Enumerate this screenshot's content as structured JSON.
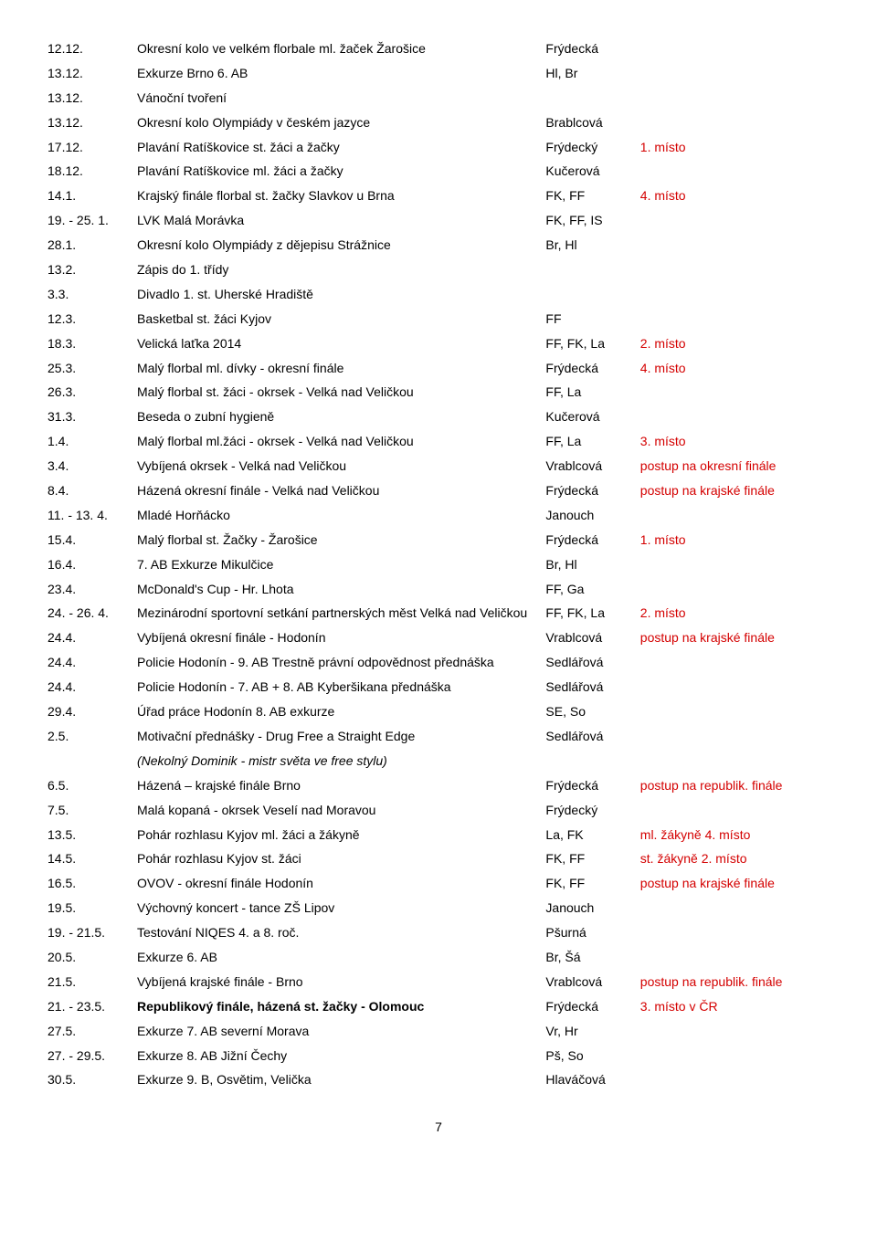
{
  "rows": [
    {
      "date": "12.12.",
      "event": "Okresní kolo ve velkém florbale ml. žaček Žarošice",
      "who": "Frýdecká",
      "note": ""
    },
    {
      "date": "13.12.",
      "event": "Exkurze Brno 6. AB",
      "who": "Hl, Br",
      "note": ""
    },
    {
      "date": "13.12.",
      "event": "Vánoční tvoření",
      "who": "",
      "note": ""
    },
    {
      "date": "13.12.",
      "event": "Okresní kolo Olympiády v českém jazyce",
      "who": "Brablcová",
      "note": ""
    },
    {
      "date": "17.12.",
      "event": "Plavání Ratíškovice st. žáci a žačky",
      "who": "Frýdecký",
      "note": "1. místo",
      "red": true
    },
    {
      "date": "18.12.",
      "event": "Plavání Ratíškovice ml. žáci a žačky",
      "who": "Kučerová",
      "note": ""
    },
    {
      "date": "14.1.",
      "event": "Krajský finále florbal st. žačky Slavkov u Brna",
      "who": "FK, FF",
      "note": "4. místo",
      "red": true
    },
    {
      "date": "19. - 25. 1.",
      "event": "LVK Malá Morávka",
      "who": "FK, FF, IS",
      "note": ""
    },
    {
      "date": "28.1.",
      "event": "Okresní kolo Olympiády z dějepisu Strážnice",
      "who": "Br, Hl",
      "note": ""
    },
    {
      "date": "13.2.",
      "event": "Zápis do 1. třídy",
      "who": "",
      "note": ""
    },
    {
      "date": "3.3.",
      "event": "Divadlo 1. st. Uherské Hradiště",
      "who": "",
      "note": ""
    },
    {
      "date": "12.3.",
      "event": "Basketbal st. žáci Kyjov",
      "who": "FF",
      "note": ""
    },
    {
      "date": "18.3.",
      "event": "Velická laťka 2014",
      "who": "FF, FK, La",
      "note": "2. místo",
      "red": true
    },
    {
      "date": "25.3.",
      "event": "Malý florbal ml. dívky - okresní finále",
      "who": "Frýdecká",
      "note": "4. místo",
      "red": true
    },
    {
      "date": "26.3.",
      "event": "Malý florbal st. žáci - okrsek - Velká nad Veličkou",
      "who": "FF, La",
      "note": ""
    },
    {
      "date": "31.3.",
      "event": "Beseda o zubní hygieně",
      "who": "Kučerová",
      "note": ""
    },
    {
      "date": "1.4.",
      "event": "Malý florbal ml.žáci - okrsek - Velká nad Veličkou",
      "who": "FF, La",
      "note": "3. místo",
      "red": true
    },
    {
      "date": "3.4.",
      "event": "Vybíjená okrsek - Velká nad Veličkou",
      "who": "Vrablcová",
      "note": "postup na okresní finále",
      "red": true
    },
    {
      "date": "8.4.",
      "event": "Házená okresní finále - Velká nad Veličkou",
      "who": "Frýdecká",
      "note": "postup na krajské finále",
      "red": true
    },
    {
      "date": "11. - 13. 4.",
      "event": "Mladé Horňácko",
      "who": "Janouch",
      "note": ""
    },
    {
      "date": "15.4.",
      "event": "Malý florbal st. Žačky - Žarošice",
      "who": "Frýdecká",
      "note": "1. místo",
      "red": true
    },
    {
      "date": "16.4.",
      "event": "7. AB Exkurze Mikulčice",
      "who": "Br, Hl",
      "note": ""
    },
    {
      "date": "23.4.",
      "event": "McDonald's Cup -  Hr. Lhota",
      "who": "FF, Ga",
      "note": ""
    },
    {
      "date": "24. - 26. 4.",
      "event": "Mezinárodní sportovní setkání partnerských měst Velká nad Veličkou",
      "who": "FF, FK, La",
      "note": "2. místo",
      "red": true
    },
    {
      "date": "24.4.",
      "event": "Vybíjená okresní finále - Hodonín",
      "who": "Vrablcová",
      "note": "postup na krajské finále",
      "red": true
    },
    {
      "date": "24.4.",
      "event": "Policie Hodonín - 9. AB Trestně právní odpovědnost přednáška",
      "who": "Sedlářová",
      "note": ""
    },
    {
      "date": "24.4.",
      "event": "Policie Hodonín - 7. AB + 8. AB Kyberšikana přednáška",
      "who": "Sedlářová",
      "note": ""
    },
    {
      "date": "29.4.",
      "event": "Úřad práce Hodonín 8. AB exkurze",
      "who": "SE, So",
      "note": ""
    },
    {
      "date": "2.5.",
      "event": "Motivační přednášky - Drug Free a Straight Edge",
      "who": "Sedlářová",
      "note": ""
    },
    {
      "date": "",
      "event": "(Nekolný Dominik - mistr světa ve free stylu)",
      "who": "",
      "note": "",
      "ital": true
    },
    {
      "date": "6.5.",
      "event": "Házená – krajské finále Brno",
      "who": "Frýdecká",
      "note": "postup na republik. finále",
      "red": true
    },
    {
      "date": "7.5.",
      "event": "Malá kopaná - okrsek Veselí nad Moravou",
      "who": "Frýdecký",
      "note": ""
    },
    {
      "date": "13.5.",
      "event": "Pohár rozhlasu Kyjov ml. žáci a žákyně",
      "who": "La, FK",
      "note": "ml. žákyně 4. místo",
      "red": true
    },
    {
      "date": "14.5.",
      "event": "Pohár rozhlasu Kyjov st. žáci",
      "who": "FK, FF",
      "note": "st. žákyně 2. místo",
      "red": true
    },
    {
      "date": "16.5.",
      "event": "OVOV  - okresní finále Hodonín",
      "who": "FK, FF",
      "note": "postup na krajské finále",
      "red": true
    },
    {
      "date": "19.5.",
      "event": "Výchovný koncert - tance ZŠ Lipov",
      "who": "Janouch",
      "note": ""
    },
    {
      "date": "19. - 21.5.",
      "event": "Testování NIQES 4. a 8. roč.",
      "who": "Pšurná",
      "note": ""
    },
    {
      "date": "20.5.",
      "event": "Exkurze 6. AB",
      "who": "Br, Šá",
      "note": ""
    },
    {
      "date": "21.5.",
      "event": "Vybíjená krajské finále - Brno",
      "who": "Vrablcová",
      "note": "postup na republik. finále",
      "red": true
    },
    {
      "date": "21. - 23.5.",
      "event": "Republikový finále, házená st. žačky - Olomouc",
      "who": "Frýdecká",
      "note": "3. místo v ČR",
      "red": true,
      "boldEvent": true
    },
    {
      "date": "27.5.",
      "event": "Exkurze 7. AB severní Morava",
      "who": "Vr, Hr",
      "note": ""
    },
    {
      "date": "27. - 29.5.",
      "event": "Exkurze 8. AB Jižní Čechy",
      "who": "Pš, So",
      "note": ""
    },
    {
      "date": "30.5.",
      "event": "Exkurze 9. B, Osvětim, Velička",
      "who": "Hlaváčová",
      "note": ""
    }
  ],
  "pageNumber": "7"
}
